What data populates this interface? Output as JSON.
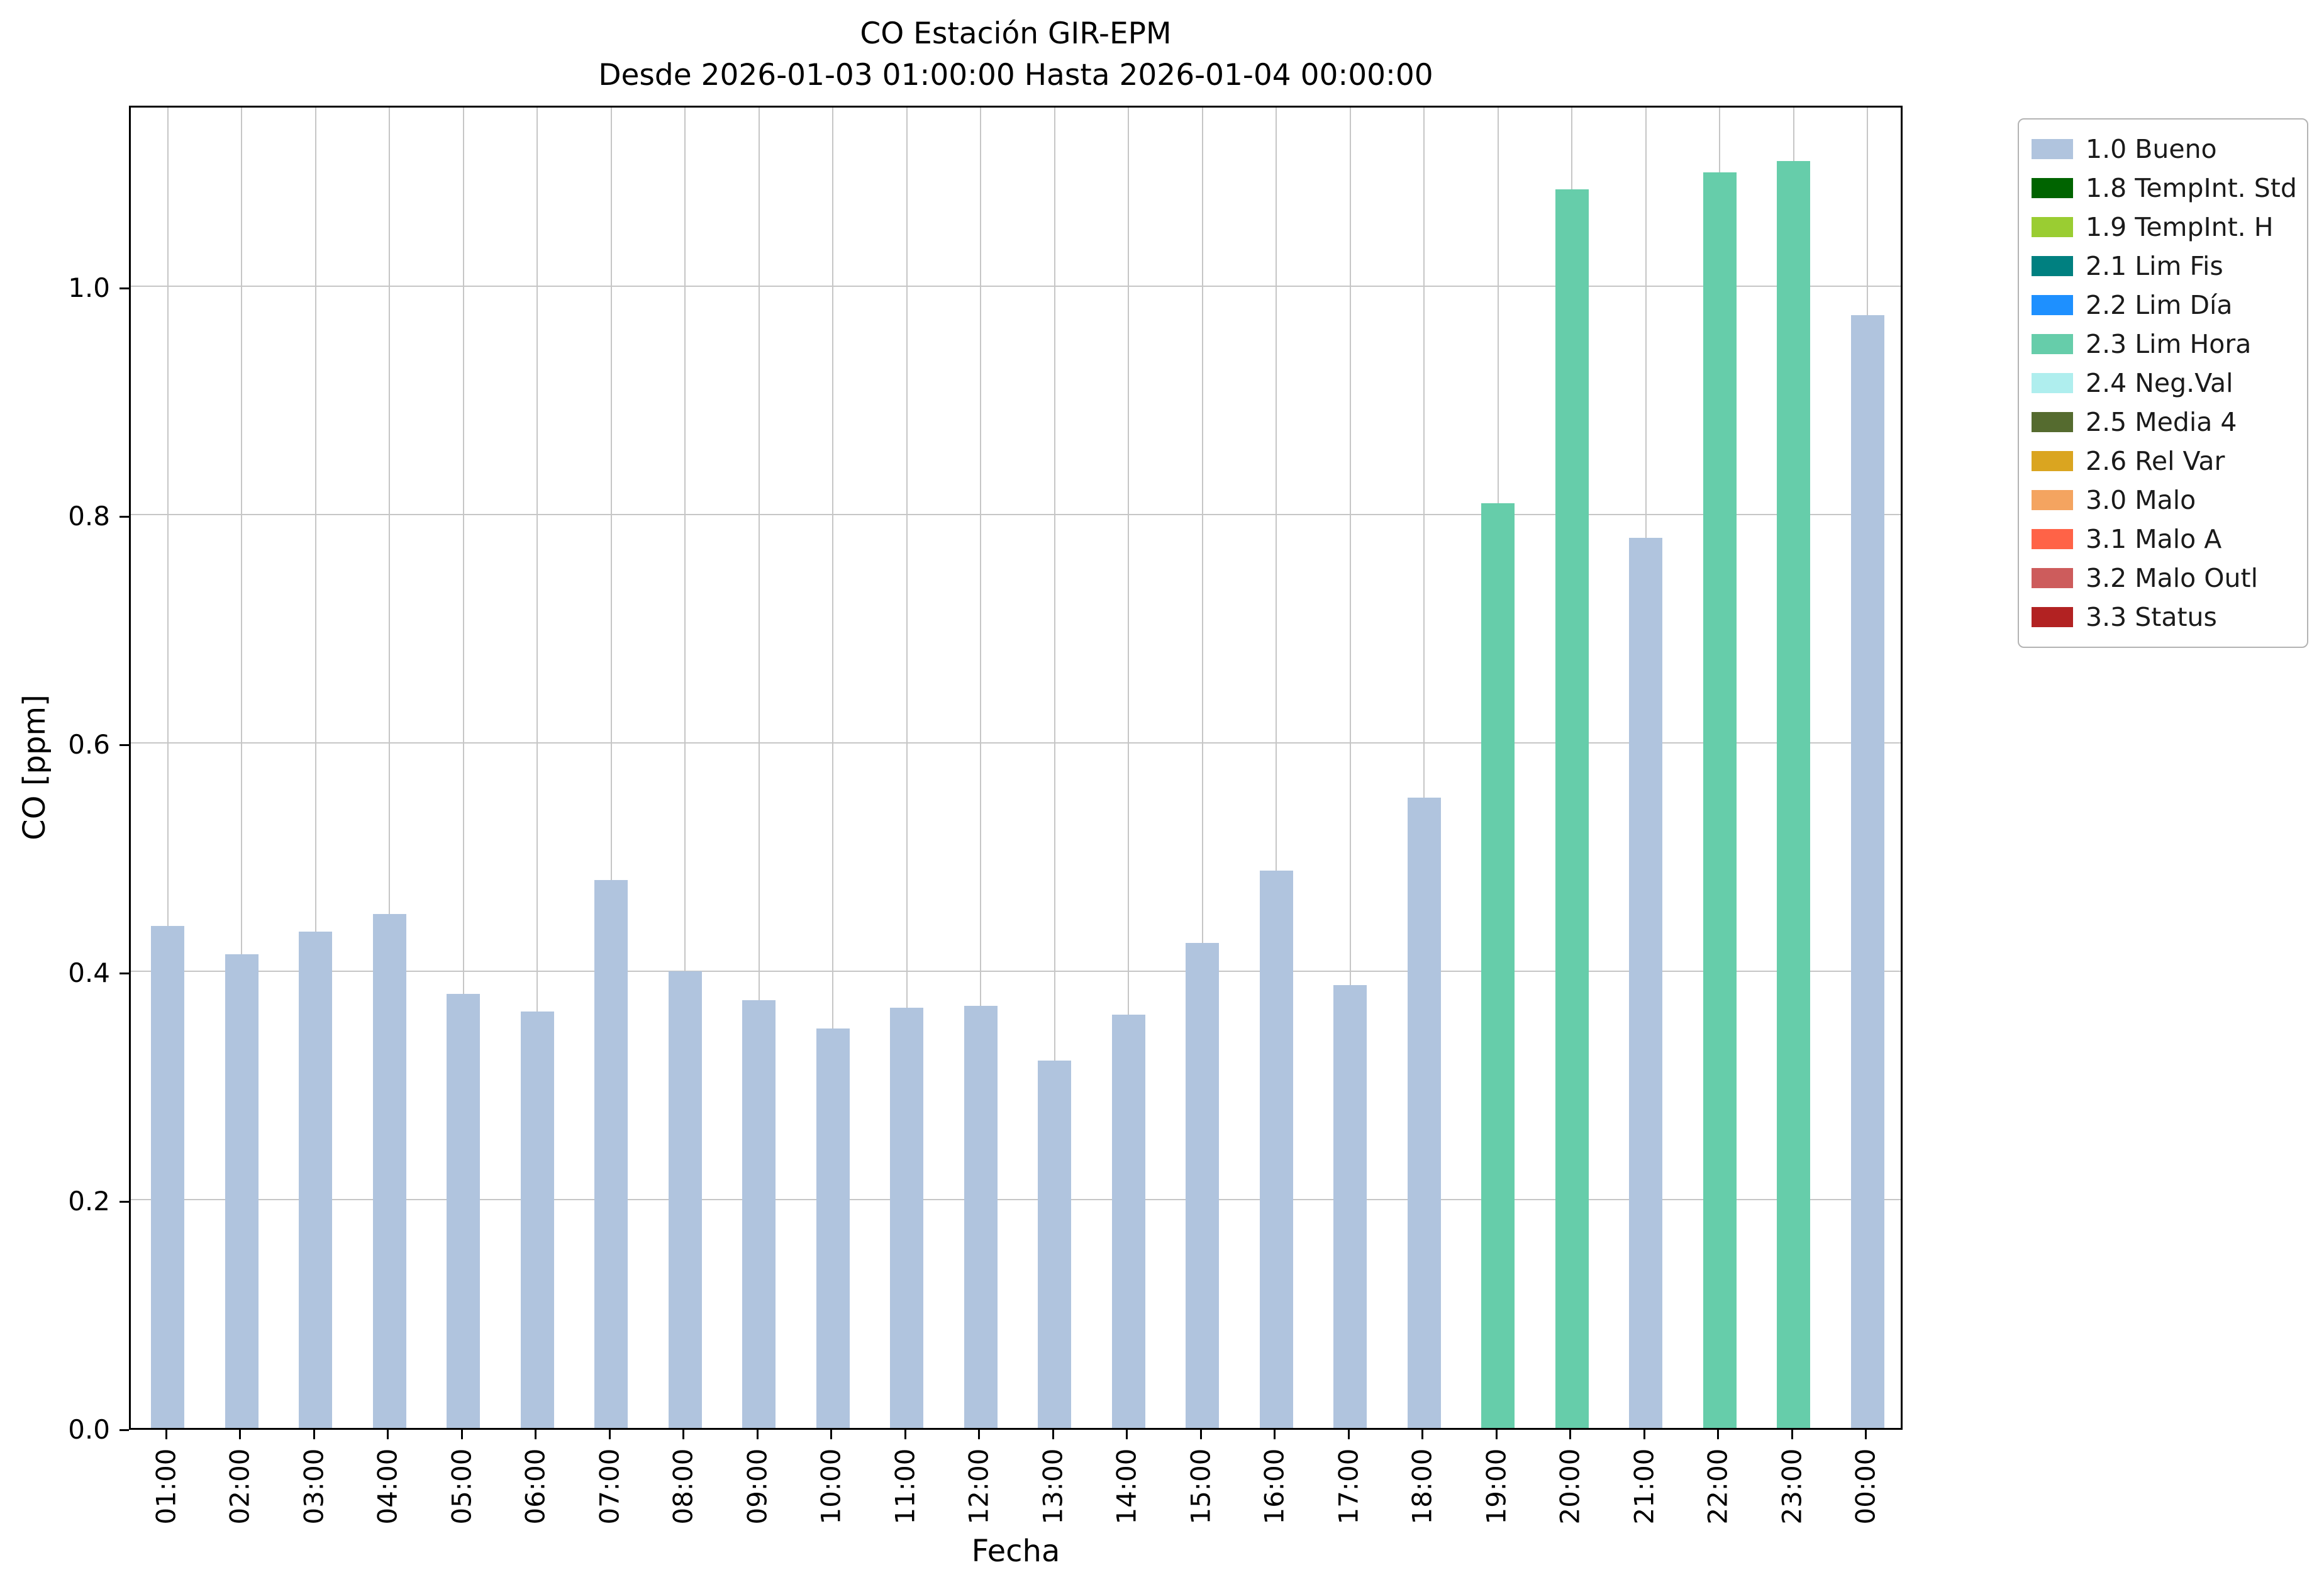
{
  "chart_data": {
    "type": "bar",
    "title": "CO Estación GIR-EPM",
    "subtitle": "Desde 2026-01-03 01:00:00 Hasta 2026-01-04 00:00:00",
    "xlabel": "Fecha",
    "ylabel": "CO [ppm]",
    "ylim": [
      0,
      1.16
    ],
    "yticks": [
      0.0,
      0.2,
      0.4,
      0.6,
      0.8,
      1.0
    ],
    "grid": true,
    "bar_width_fraction": 0.45,
    "categories": [
      "01:00",
      "02:00",
      "03:00",
      "04:00",
      "05:00",
      "06:00",
      "07:00",
      "08:00",
      "09:00",
      "10:00",
      "11:00",
      "12:00",
      "13:00",
      "14:00",
      "15:00",
      "16:00",
      "17:00",
      "18:00",
      "19:00",
      "20:00",
      "21:00",
      "22:00",
      "23:00",
      "00:00"
    ],
    "values": [
      0.44,
      0.415,
      0.435,
      0.45,
      0.38,
      0.365,
      0.48,
      0.4,
      0.375,
      0.35,
      0.368,
      0.37,
      0.322,
      0.362,
      0.425,
      0.488,
      0.388,
      0.552,
      0.81,
      1.085,
      0.78,
      1.1,
      1.11,
      0.975
    ],
    "bar_status": [
      "1.0 Bueno",
      "1.0 Bueno",
      "1.0 Bueno",
      "1.0 Bueno",
      "1.0 Bueno",
      "1.0 Bueno",
      "1.0 Bueno",
      "1.0 Bueno",
      "1.0 Bueno",
      "1.0 Bueno",
      "1.0 Bueno",
      "1.0 Bueno",
      "1.0 Bueno",
      "1.0 Bueno",
      "1.0 Bueno",
      "1.0 Bueno",
      "1.0 Bueno",
      "1.0 Bueno",
      "2.3 Lim Hora",
      "2.3 Lim Hora",
      "1.0 Bueno",
      "2.3 Lim Hora",
      "2.3 Lim Hora",
      "1.0 Bueno"
    ],
    "status_colors": {
      "1.0 Bueno": "#B0C4DE",
      "2.3 Lim Hora": "#66CDAA"
    },
    "legend": {
      "position": "outside-top-right",
      "items": [
        {
          "label": "1.0 Bueno",
          "color": "#B0C4DE"
        },
        {
          "label": "1.8 TempInt. Std",
          "color": "#006400"
        },
        {
          "label": "1.9 TempInt. H",
          "color": "#9ACD32"
        },
        {
          "label": "2.1 Lim Fis",
          "color": "#008080"
        },
        {
          "label": "2.2 Lim Día",
          "color": "#1E90FF"
        },
        {
          "label": "2.3 Lim Hora",
          "color": "#66CDAA"
        },
        {
          "label": "2.4 Neg.Val",
          "color": "#AFEEEE"
        },
        {
          "label": "2.5 Media 4",
          "color": "#556B2F"
        },
        {
          "label": "2.6 Rel Var",
          "color": "#DAA520"
        },
        {
          "label": "3.0 Malo",
          "color": "#F4A460"
        },
        {
          "label": "3.1 Malo A",
          "color": "#FF6347"
        },
        {
          "label": "3.2 Malo Outl",
          "color": "#CD5C5C"
        },
        {
          "label": "3.3 Status",
          "color": "#B22222"
        }
      ]
    }
  }
}
